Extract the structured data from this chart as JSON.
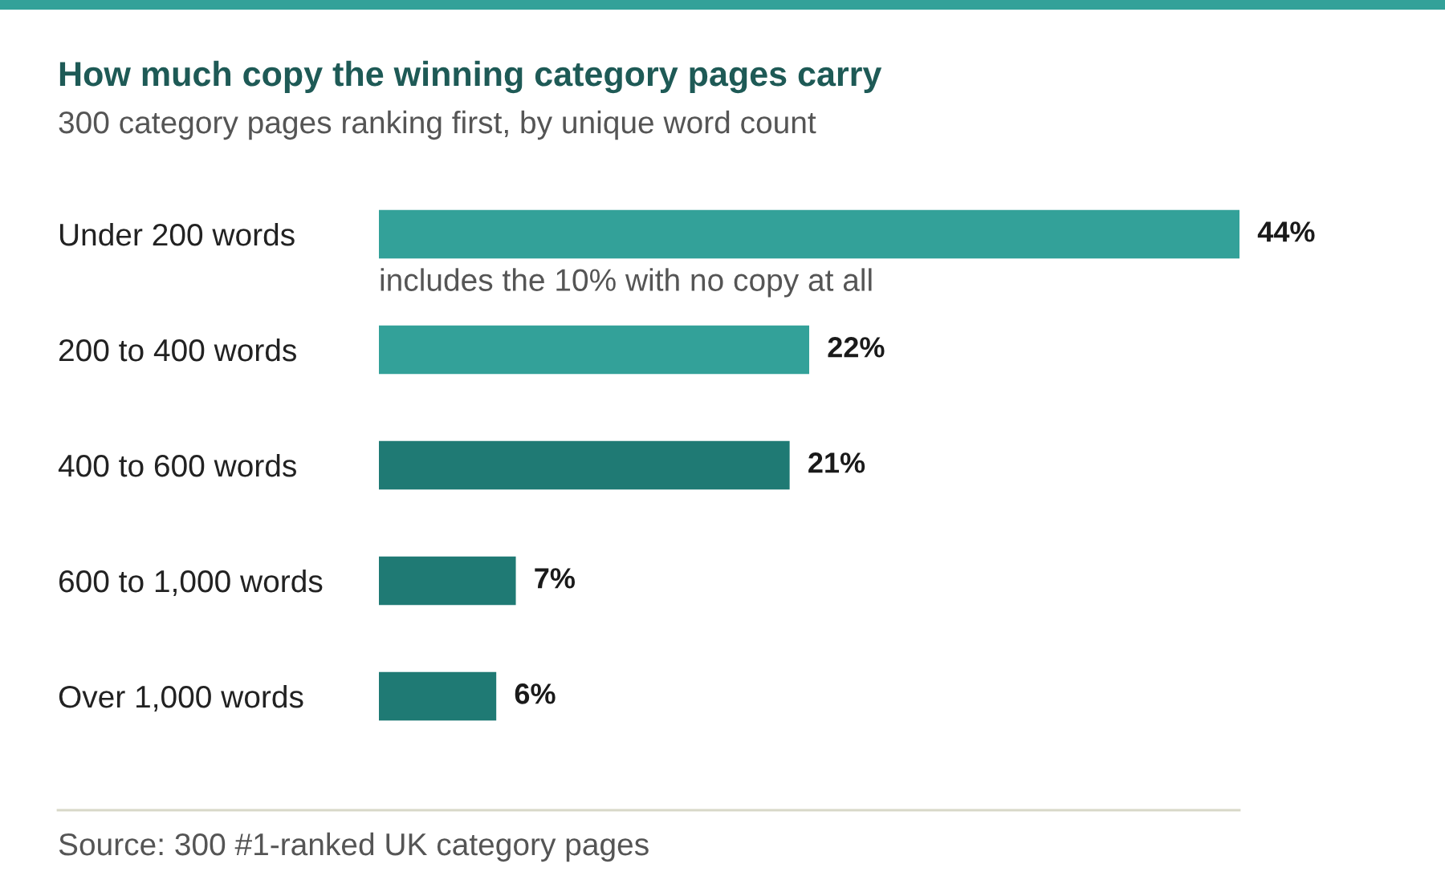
{
  "chart_data": {
    "type": "bar",
    "orientation": "horizontal",
    "title": "How much copy the winning category pages carry",
    "subtitle": "300 category pages ranking first, by unique word count",
    "categories": [
      "Under 200 words",
      "200 to 400 words",
      "400 to 600 words",
      "600 to 1,000 words",
      "Over 1,000 words"
    ],
    "values": [
      44,
      22,
      21,
      7,
      6
    ],
    "colors": [
      "#33a199",
      "#33a199",
      "#1f7a74",
      "#1f7a74",
      "#1f7a74"
    ],
    "value_labels": [
      "44%",
      "22%",
      "21%",
      "7%",
      "6%"
    ],
    "annotations": [
      "includes the 10% with no copy at all",
      "Source: 300 #1-ranked UK category pages"
    ],
    "tick_labels": "y",
    "grid": false,
    "legend": false
  }
}
